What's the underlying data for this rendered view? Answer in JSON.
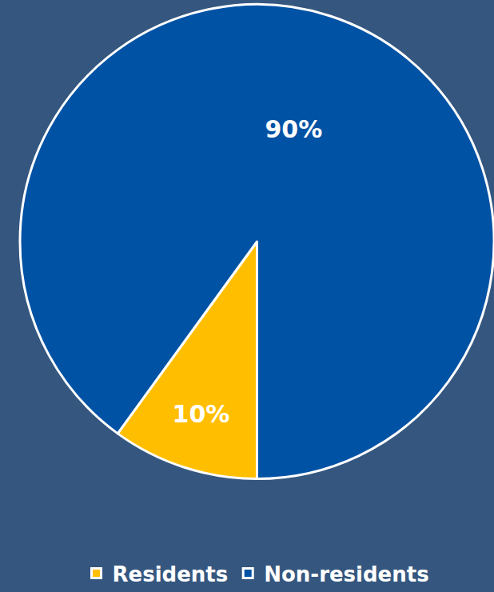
{
  "chart_data": {
    "type": "pie",
    "categories": [
      "Residents",
      "Non-residents"
    ],
    "values": [
      10,
      90
    ],
    "value_labels": [
      "10%",
      "90%"
    ],
    "colors": [
      "#FFBF00",
      "#0052A5"
    ],
    "data_labels": true,
    "legend": "bottom"
  }
}
